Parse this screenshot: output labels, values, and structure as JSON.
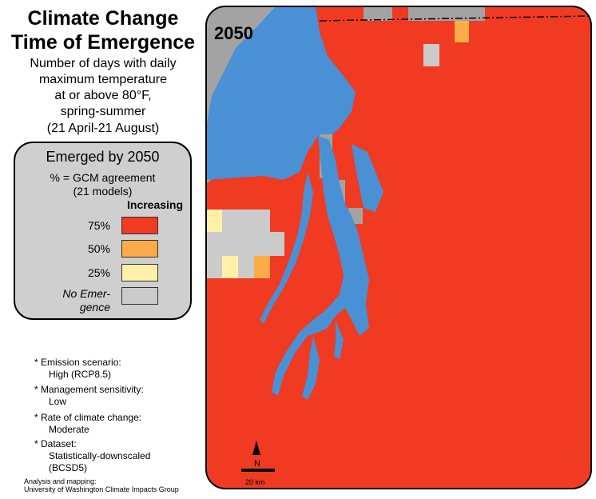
{
  "title_line1": "Climate Change",
  "title_line2": "Time of Emergence",
  "subtitle_lines": [
    "Number of days with daily",
    "maximum temperature",
    "at or above 80°F,",
    "spring-summer",
    "(21 April-21 August)"
  ],
  "map_year": "2050",
  "legend": {
    "title": "Emerged by 2050",
    "subtitle_line1": "% = GCM agreement",
    "subtitle_line2": "(21 models)",
    "group_label": "Increasing",
    "items": [
      {
        "label": "75%",
        "color": "#f03a22"
      },
      {
        "label": "50%",
        "color": "#fbab47"
      },
      {
        "label": "25%",
        "color": "#fff0a8"
      },
      {
        "label_line1": "No Emer-",
        "label_line2": "gence",
        "color": "#cbcbcb"
      }
    ]
  },
  "notes": [
    {
      "label": "* Emission scenario:",
      "value": "High (RCP8.5)"
    },
    {
      "label": "* Management sensitivity:",
      "value": "Low"
    },
    {
      "label": "* Rate of climate change:",
      "value": "Moderate"
    },
    {
      "label": "* Dataset:",
      "value_line1": "Statistically-downscaled",
      "value_line2": "(BCSD5)"
    }
  ],
  "credit_line1": "Analysis and mapping:",
  "credit_line2": "University of Washington Climate Impacts Group",
  "north_label": "N",
  "scale_label": "20 km",
  "colors": {
    "water": "#4a90d4",
    "emerged_75": "#f03a22",
    "emerged_50": "#fbab47",
    "emerged_25": "#fff0a8",
    "no_emergence": "#cbcbcb",
    "land_outside": "#a3a3a3"
  }
}
